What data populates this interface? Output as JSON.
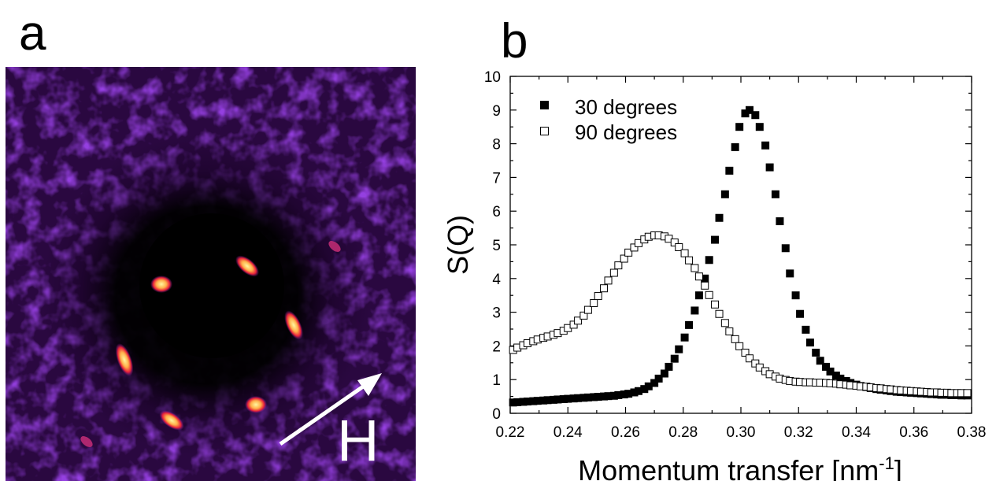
{
  "panel_a": {
    "letter": "a",
    "field_label": "H",
    "colors": {
      "background": "#0a0008",
      "halo": "#5a1fb0",
      "ring": "#7a2ad0",
      "spot_core": "#fff6a0",
      "spot_edge": "#e8203a",
      "arrow": "#ffffff"
    }
  },
  "panel_b": {
    "letter": "b"
  },
  "chart_data": {
    "type": "scatter",
    "xlabel_main": "Momentum transfer [nm",
    "xlabel_sup": "-1",
    "xlabel_close": "]",
    "ylabel": "S(Q)",
    "xlim": [
      0.22,
      0.38
    ],
    "ylim": [
      0,
      10
    ],
    "x_ticks": [
      "0.22",
      "0.24",
      "0.26",
      "0.28",
      "0.30",
      "0.32",
      "0.34",
      "0.36",
      "0.38"
    ],
    "y_ticks": [
      "0",
      "1",
      "2",
      "3",
      "4",
      "5",
      "6",
      "7",
      "8",
      "9",
      "10"
    ],
    "grid": false,
    "legend_position": "top-left",
    "series": [
      {
        "name": "30 degrees",
        "marker": "filled-square",
        "x": [
          0.221,
          0.2225,
          0.2245,
          0.226,
          0.228,
          0.2295,
          0.2315,
          0.233,
          0.235,
          0.2365,
          0.2385,
          0.24,
          0.242,
          0.2435,
          0.2455,
          0.247,
          0.249,
          0.2505,
          0.2525,
          0.254,
          0.256,
          0.2575,
          0.2595,
          0.261,
          0.263,
          0.2645,
          0.2665,
          0.268,
          0.27,
          0.2715,
          0.2735,
          0.275,
          0.277,
          0.2785,
          0.2805,
          0.282,
          0.284,
          0.2855,
          0.2875,
          0.289,
          0.291,
          0.2925,
          0.2945,
          0.296,
          0.298,
          0.2995,
          0.3015,
          0.303,
          0.305,
          0.3065,
          0.3085,
          0.31,
          0.312,
          0.3135,
          0.3155,
          0.317,
          0.319,
          0.3205,
          0.3225,
          0.324,
          0.326,
          0.3275,
          0.3295,
          0.331,
          0.333,
          0.3345,
          0.3365,
          0.338,
          0.34,
          0.3415,
          0.3435,
          0.345,
          0.347,
          0.3485,
          0.3505,
          0.352,
          0.354,
          0.3555,
          0.3575,
          0.359,
          0.361,
          0.3625,
          0.3645,
          0.366,
          0.368,
          0.3695,
          0.3715,
          0.373,
          0.375,
          0.3765,
          0.3785
        ],
        "y": [
          0.32,
          0.33,
          0.34,
          0.35,
          0.36,
          0.37,
          0.38,
          0.39,
          0.4,
          0.41,
          0.42,
          0.43,
          0.44,
          0.45,
          0.46,
          0.47,
          0.48,
          0.49,
          0.5,
          0.51,
          0.52,
          0.54,
          0.56,
          0.58,
          0.62,
          0.66,
          0.72,
          0.8,
          0.9,
          1.03,
          1.18,
          1.38,
          1.62,
          1.9,
          2.25,
          2.62,
          3.05,
          3.5,
          4.0,
          4.55,
          5.15,
          5.8,
          6.5,
          7.2,
          7.9,
          8.5,
          8.9,
          9.0,
          8.85,
          8.5,
          7.95,
          7.3,
          6.5,
          5.7,
          4.9,
          4.15,
          3.5,
          2.95,
          2.48,
          2.1,
          1.8,
          1.56,
          1.38,
          1.24,
          1.12,
          1.03,
          0.96,
          0.9,
          0.85,
          0.81,
          0.78,
          0.75,
          0.72,
          0.7,
          0.68,
          0.66,
          0.64,
          0.63,
          0.62,
          0.61,
          0.6,
          0.59,
          0.58,
          0.57,
          0.56,
          0.55,
          0.55,
          0.54,
          0.54,
          0.53,
          0.53
        ]
      },
      {
        "name": "90 degrees",
        "marker": "open-square",
        "x": [
          0.221,
          0.2225,
          0.2245,
          0.226,
          0.228,
          0.2295,
          0.2315,
          0.233,
          0.235,
          0.2365,
          0.2385,
          0.24,
          0.242,
          0.2435,
          0.2455,
          0.247,
          0.249,
          0.2505,
          0.2525,
          0.254,
          0.256,
          0.2575,
          0.2595,
          0.261,
          0.263,
          0.2645,
          0.2665,
          0.268,
          0.27,
          0.2715,
          0.2735,
          0.275,
          0.277,
          0.2785,
          0.2805,
          0.282,
          0.284,
          0.2855,
          0.2875,
          0.289,
          0.291,
          0.2925,
          0.2945,
          0.296,
          0.298,
          0.2995,
          0.3015,
          0.303,
          0.305,
          0.3065,
          0.3085,
          0.31,
          0.312,
          0.3135,
          0.3155,
          0.317,
          0.319,
          0.3205,
          0.3225,
          0.324,
          0.326,
          0.3275,
          0.3295,
          0.331,
          0.333,
          0.3345,
          0.3365,
          0.338,
          0.34,
          0.3415,
          0.3435,
          0.345,
          0.347,
          0.3485,
          0.3505,
          0.352,
          0.354,
          0.3555,
          0.3575,
          0.359,
          0.361,
          0.3625,
          0.3645,
          0.366,
          0.368,
          0.3695,
          0.3715,
          0.373,
          0.375,
          0.3765,
          0.3785
        ],
        "y": [
          1.88,
          1.95,
          2.02,
          2.08,
          2.14,
          2.19,
          2.24,
          2.28,
          2.33,
          2.38,
          2.45,
          2.53,
          2.63,
          2.75,
          2.9,
          3.07,
          3.27,
          3.48,
          3.71,
          3.94,
          4.17,
          4.39,
          4.59,
          4.77,
          4.92,
          5.05,
          5.16,
          5.24,
          5.28,
          5.28,
          5.25,
          5.18,
          5.07,
          4.93,
          4.75,
          4.54,
          4.31,
          4.06,
          3.79,
          3.51,
          3.23,
          2.95,
          2.68,
          2.43,
          2.2,
          1.99,
          1.8,
          1.63,
          1.48,
          1.36,
          1.25,
          1.16,
          1.09,
          1.03,
          0.99,
          0.96,
          0.94,
          0.93,
          0.92,
          0.92,
          0.91,
          0.91,
          0.9,
          0.89,
          0.88,
          0.86,
          0.85,
          0.83,
          0.82,
          0.8,
          0.79,
          0.77,
          0.75,
          0.74,
          0.72,
          0.71,
          0.69,
          0.68,
          0.67,
          0.66,
          0.65,
          0.64,
          0.63,
          0.62,
          0.62,
          0.61,
          0.61,
          0.6,
          0.6,
          0.6,
          0.6
        ]
      }
    ]
  }
}
